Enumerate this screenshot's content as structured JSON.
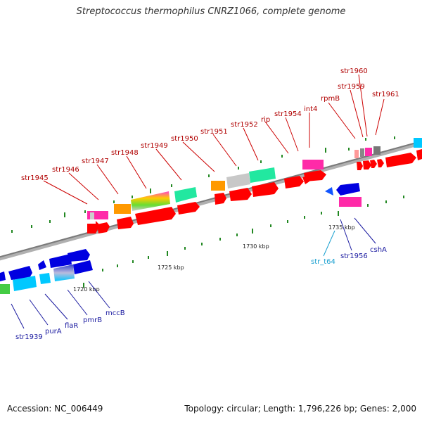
{
  "header": {
    "title": "Streptococcus thermophilus CNRZ1066, complete genome"
  },
  "footer": {
    "accession": "Accession: NC_006449",
    "topology": "Topology: circular; Length: 1,796,226 bp; Genes: 2,000"
  },
  "scale_labels": [
    "1720 kbp",
    "1725 kbp",
    "1730 kbp",
    "1735 kbp"
  ],
  "top_gene_labels": [
    "str1945",
    "str1946",
    "str1947",
    "str1948",
    "str1949",
    "str1950",
    "str1951",
    "str1952",
    "rip",
    "str1954",
    "int4",
    "rpmB",
    "str1959",
    "str1960",
    "str1961"
  ],
  "bottom_gene_labels": [
    "str1939",
    "purA",
    "flaR",
    "pmrB",
    "mccB",
    "str_t64",
    "str1956",
    "cshA"
  ],
  "colors": {
    "backbone": "#808080",
    "feature_red": "#ff0000",
    "feature_blue": "#0000e0",
    "feature_cyan": "#00c8ff",
    "feature_pink": "#ff2aa8",
    "feature_orange": "#ff9900",
    "feature_teal": "#22e8a0",
    "label_top": "#b00000",
    "label_bottom": "#1a1aa0"
  }
}
